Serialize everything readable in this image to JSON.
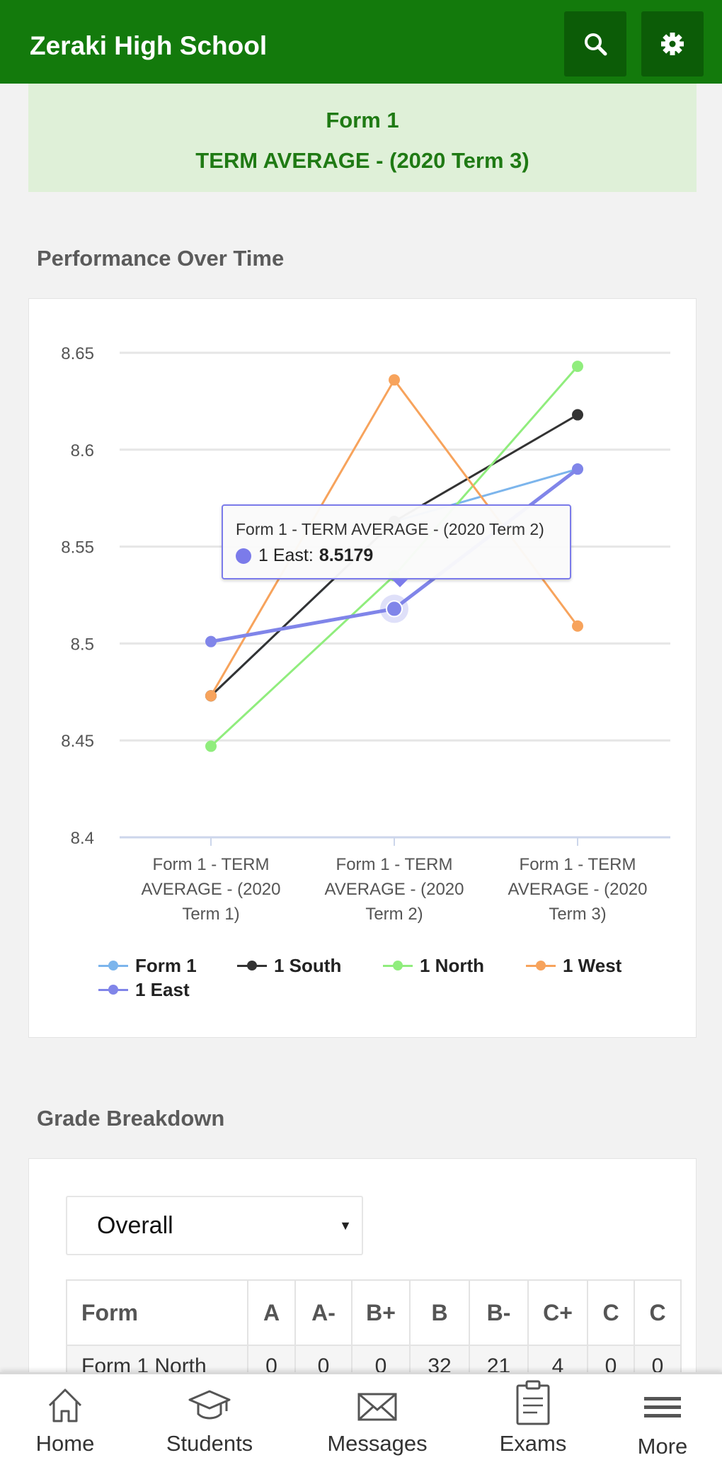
{
  "app": {
    "title": "Zeraki High School",
    "accent": "#137a0c"
  },
  "toolbar": {
    "search_icon": "search-icon",
    "settings_icon": "gear-icon"
  },
  "banner": {
    "line1": "Form 1",
    "line2": "TERM AVERAGE - (2020 Term 3)"
  },
  "performance": {
    "title": "Performance Over Time"
  },
  "chart_data": {
    "type": "line",
    "categories": [
      "Form 1 - TERM AVERAGE - (2020 Term 1)",
      "Form 1 - TERM AVERAGE - (2020 Term 2)",
      "Form 1 - TERM AVERAGE - (2020 Term 3)"
    ],
    "category_label_lines": [
      [
        "Form 1 - TERM",
        "AVERAGE - (2020",
        "Term 1)"
      ],
      [
        "Form 1 - TERM",
        "AVERAGE - (2020",
        "Term 2)"
      ],
      [
        "Form 1 - TERM",
        "AVERAGE - (2020",
        "Term 3)"
      ]
    ],
    "ylim": [
      8.4,
      8.65
    ],
    "yticks": [
      "8.4",
      "8.45",
      "8.5",
      "8.55",
      "8.6",
      "8.65"
    ],
    "grid": true,
    "legend_position": "bottom",
    "series": [
      {
        "name": "Form 1",
        "color": "#7cb5ec",
        "values": [
          8.473,
          8.563,
          8.59
        ]
      },
      {
        "name": "1 South",
        "color": "#333333",
        "values": [
          8.473,
          8.563,
          8.618
        ]
      },
      {
        "name": "1 North",
        "color": "#90ed7d",
        "values": [
          8.447,
          8.535,
          8.643
        ]
      },
      {
        "name": "1 West",
        "color": "#f7a35c",
        "values": [
          8.473,
          8.636,
          8.509
        ]
      },
      {
        "name": "1 East",
        "color": "#8085e9",
        "values": [
          8.501,
          8.5179,
          8.59
        ]
      }
    ],
    "tooltip": {
      "header": "Form 1 - TERM AVERAGE - (2020 Term 2)",
      "series": "1 East:",
      "value": "8.5179"
    }
  },
  "grade_breakdown": {
    "title": "Grade Breakdown",
    "select_value": "Overall",
    "columns": [
      "Form",
      "A",
      "A-",
      "B+",
      "B",
      "B-",
      "C+",
      "C",
      "C"
    ],
    "rows": [
      [
        "Form 1 North",
        "0",
        "0",
        "0",
        "32",
        "21",
        "4",
        "0",
        "0"
      ]
    ]
  },
  "nav": {
    "items": [
      {
        "label": "Home",
        "icon": "home-icon"
      },
      {
        "label": "Students",
        "icon": "graduation-cap-icon"
      },
      {
        "label": "Messages",
        "icon": "envelope-icon"
      },
      {
        "label": "Exams",
        "icon": "clipboard-icon"
      },
      {
        "label": "More",
        "icon": "menu-icon"
      }
    ]
  }
}
